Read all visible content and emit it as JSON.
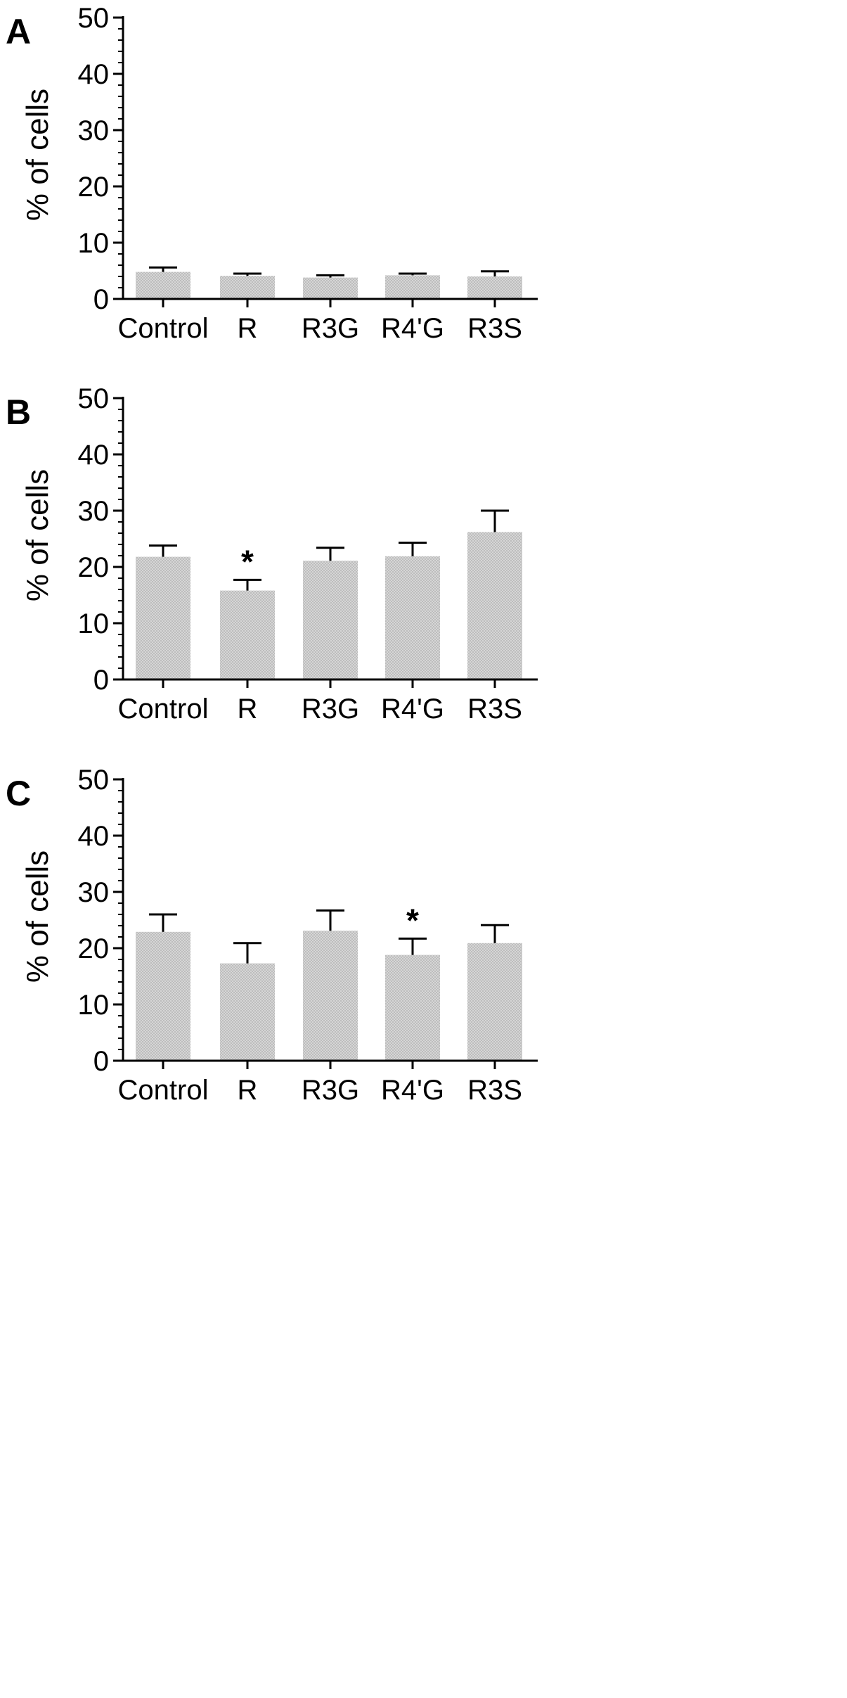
{
  "chart_data": [
    {
      "type": "bar",
      "panel_label": "A",
      "categories": [
        "Control",
        "R",
        "R3G",
        "R4'G",
        "R3S"
      ],
      "values": [
        4.8,
        4.1,
        3.8,
        4.2,
        4.0
      ],
      "errors": [
        0.8,
        0.4,
        0.4,
        0.3,
        0.9
      ],
      "annotations": [
        "",
        "",
        "",
        "",
        ""
      ],
      "xlabel": "",
      "ylabel": "% of cells",
      "ylim": [
        0,
        50
      ],
      "yticks": [
        0,
        10,
        20,
        30,
        40,
        50
      ],
      "grid": false
    },
    {
      "type": "bar",
      "panel_label": "B",
      "categories": [
        "Control",
        "R",
        "R3G",
        "R4'G",
        "R3S"
      ],
      "values": [
        21.8,
        15.8,
        21.1,
        21.9,
        26.2
      ],
      "errors": [
        2.0,
        1.9,
        2.3,
        2.4,
        3.8
      ],
      "annotations": [
        "",
        "*",
        "",
        "",
        ""
      ],
      "xlabel": "",
      "ylabel": "% of cells",
      "ylim": [
        0,
        50
      ],
      "yticks": [
        0,
        10,
        20,
        30,
        40,
        50
      ],
      "grid": false
    },
    {
      "type": "bar",
      "panel_label": "C",
      "categories": [
        "Control",
        "R",
        "R3G",
        "R4'G",
        "R3S"
      ],
      "values": [
        22.9,
        17.3,
        23.1,
        18.8,
        20.9
      ],
      "errors": [
        3.1,
        3.6,
        3.6,
        2.9,
        3.2
      ],
      "annotations": [
        "",
        "",
        "",
        "*",
        ""
      ],
      "xlabel": "",
      "ylabel": "% of cells",
      "ylim": [
        0,
        50
      ],
      "yticks": [
        0,
        10,
        20,
        30,
        40,
        50
      ],
      "grid": false
    }
  ],
  "colors": {
    "bar_fill": "#c4c4c4",
    "axis": "#000000"
  }
}
